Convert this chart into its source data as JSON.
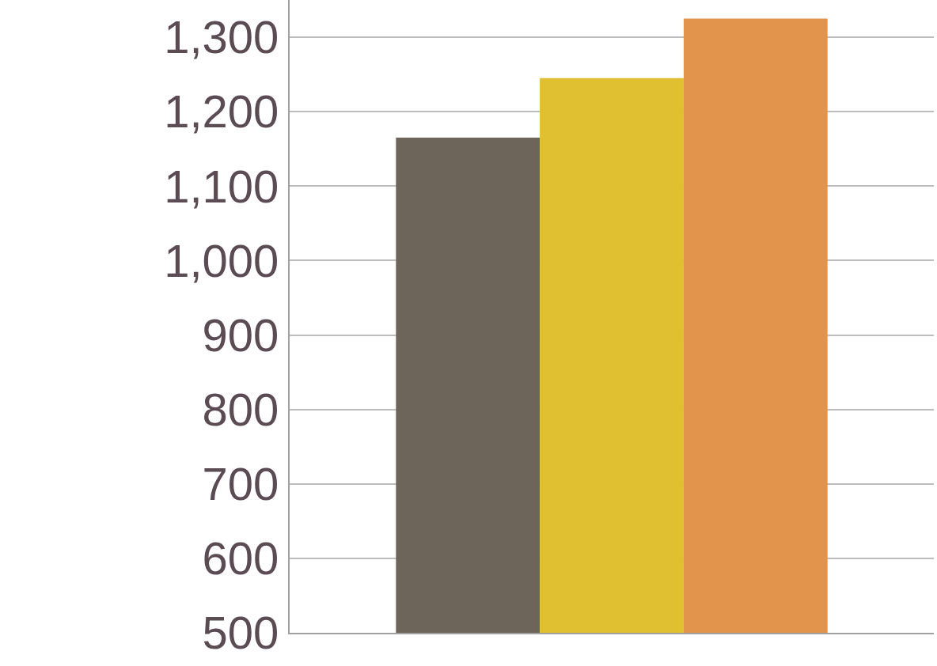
{
  "chart_data": {
    "type": "bar",
    "categories": [
      null
    ],
    "series": [
      {
        "color": "#6e655a",
        "values": [
          1165
        ]
      },
      {
        "color": "#e0c031",
        "values": [
          1245
        ]
      },
      {
        "color": "#e3944c",
        "values": [
          1325
        ]
      }
    ],
    "ylim": [
      500,
      1350
    ],
    "yticks": [
      {
        "value": 500,
        "label": "500"
      },
      {
        "value": 600,
        "label": "600"
      },
      {
        "value": 700,
        "label": "700"
      },
      {
        "value": 800,
        "label": "800"
      },
      {
        "value": 900,
        "label": "900"
      },
      {
        "value": 1000,
        "label": "1,000"
      },
      {
        "value": 1100,
        "label": "1,100"
      },
      {
        "value": 1200,
        "label": "1,200"
      },
      {
        "value": 1300,
        "label": "1,300"
      }
    ],
    "grid": "y"
  }
}
